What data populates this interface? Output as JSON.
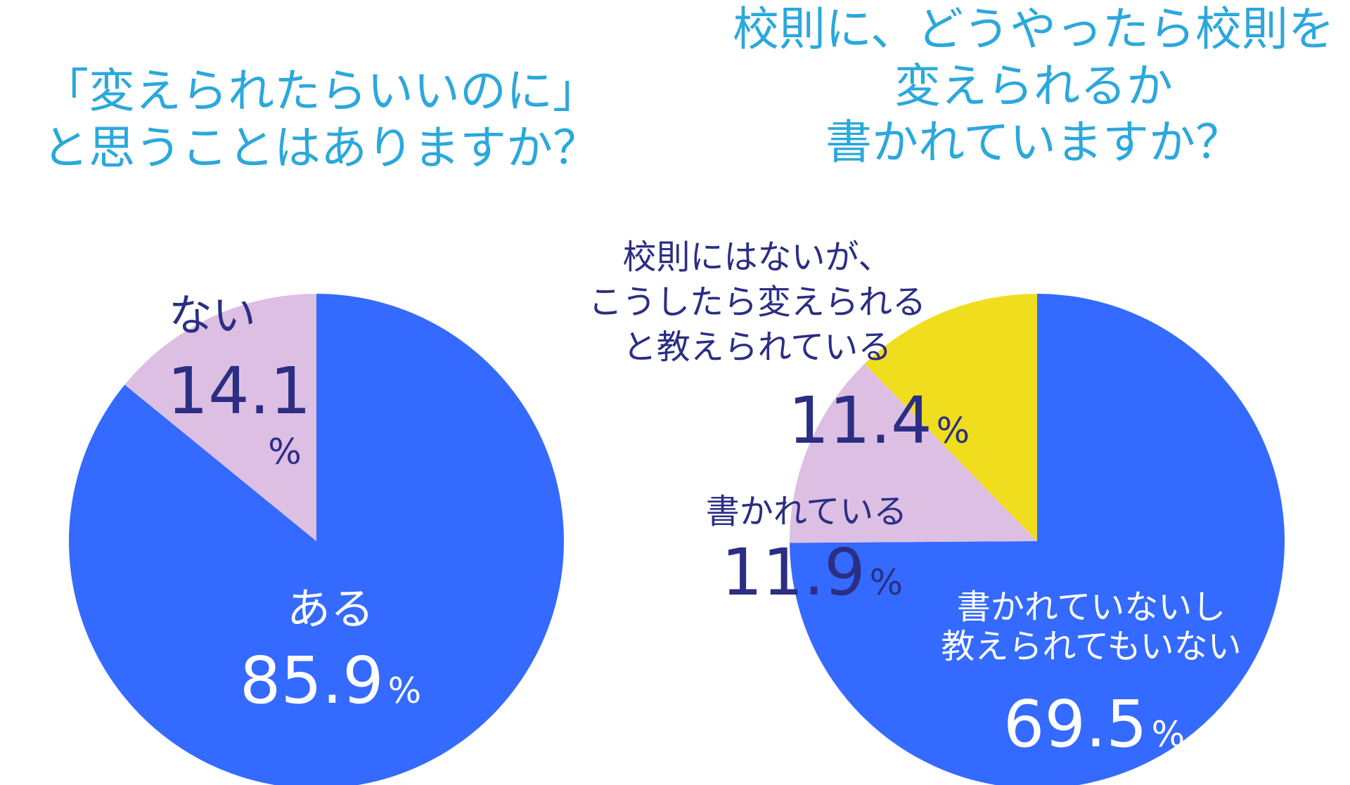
{
  "colors": {
    "title": "#2BA8DC",
    "label_dark": "#2B2E83",
    "label_light": "#FFFFFF",
    "blue": "#346AFF",
    "pink": "#DDBFE3",
    "yellow": "#F0DE1E"
  },
  "chart_data": [
    {
      "type": "pie",
      "title_lines": [
        "「変えられたらいいのに」",
        "と思うことはありますか？"
      ],
      "slices": [
        {
          "label_lines": [
            "ある"
          ],
          "value": "85.9",
          "unit": "%",
          "color": "#346AFF"
        },
        {
          "label_lines": [
            "ない"
          ],
          "value": "14.1",
          "unit": "%",
          "color": "#DDBFE3"
        }
      ]
    },
    {
      "type": "pie",
      "title_lines": [
        "校則に、どうやったら校則を",
        "変えられるか",
        "書かれていますか？"
      ],
      "slices": [
        {
          "label_lines": [
            "書かれていないし",
            "教えられてもいない"
          ],
          "value": "69.5",
          "unit": "%",
          "color": "#346AFF"
        },
        {
          "label_lines": [
            "書かれている"
          ],
          "value": "11.9",
          "unit": "%",
          "color": "#DDBFE3"
        },
        {
          "label_lines": [
            "校則にはないが、",
            "こうしたら変えられる",
            "と教えられている"
          ],
          "value": "11.4",
          "unit": "%",
          "color": "#F0DE1E"
        }
      ]
    }
  ]
}
